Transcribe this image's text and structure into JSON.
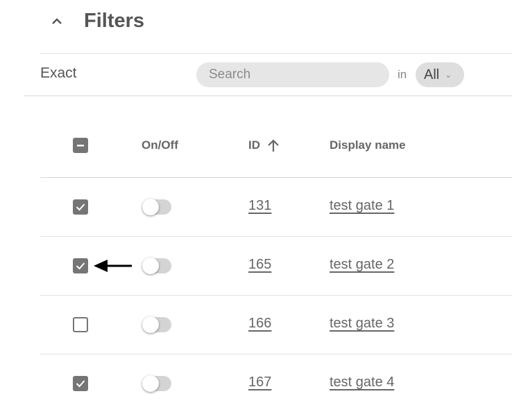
{
  "filters": {
    "title": "Filters",
    "exact_label": "Exact",
    "search_placeholder": "Search",
    "in_label": "in",
    "scope_value": "All"
  },
  "table": {
    "headers": {
      "onoff": "On/Off",
      "id": "ID",
      "display_name": "Display name"
    },
    "sort": {
      "column": "ID",
      "direction": "ascending"
    },
    "select_all_state": "indeterminate",
    "rows": [
      {
        "checked": true,
        "on": false,
        "id": "131",
        "name": "test gate 1"
      },
      {
        "checked": true,
        "on": false,
        "id": "165",
        "name": "test gate 2"
      },
      {
        "checked": false,
        "on": false,
        "id": "166",
        "name": "test gate 3"
      },
      {
        "checked": true,
        "on": false,
        "id": "167",
        "name": "test gate 4"
      }
    ]
  }
}
